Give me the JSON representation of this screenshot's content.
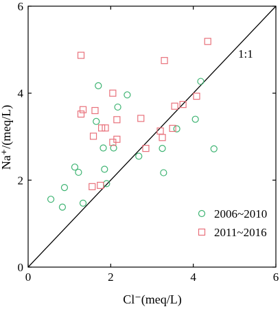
{
  "chart_data": {
    "type": "scatter",
    "xlabel": "Cl⁻(meq/L)",
    "ylabel": "Na⁺/(meq/L)",
    "xlim": [
      0,
      6
    ],
    "ylim": [
      0,
      6
    ],
    "xticks": [
      "0",
      "2",
      "4",
      "6"
    ],
    "yticks": [
      "0",
      "2",
      "4",
      "6"
    ],
    "grid": false,
    "legend_position": "bottom-right",
    "reference_line": {
      "label": "1:1",
      "from": [
        0,
        0
      ],
      "to": [
        6,
        6
      ]
    },
    "series": [
      {
        "name": "2006~2010",
        "marker": "circle",
        "color": "#3cb371",
        "points": [
          [
            0.55,
            1.56
          ],
          [
            0.83,
            1.38
          ],
          [
            0.88,
            1.83
          ],
          [
            1.13,
            2.3
          ],
          [
            1.22,
            2.18
          ],
          [
            1.33,
            1.47
          ],
          [
            1.65,
            3.35
          ],
          [
            1.7,
            4.17
          ],
          [
            1.82,
            2.74
          ],
          [
            1.85,
            2.25
          ],
          [
            1.9,
            1.92
          ],
          [
            2.07,
            2.74
          ],
          [
            2.17,
            3.68
          ],
          [
            2.4,
            3.96
          ],
          [
            2.68,
            2.55
          ],
          [
            3.25,
            2.73
          ],
          [
            3.28,
            2.17
          ],
          [
            3.6,
            3.18
          ],
          [
            4.05,
            3.4
          ],
          [
            4.18,
            4.27
          ],
          [
            4.5,
            2.72
          ]
        ]
      },
      {
        "name": "2011~2016",
        "marker": "square",
        "color": "#e8707a",
        "points": [
          [
            1.28,
            4.87
          ],
          [
            1.28,
            3.52
          ],
          [
            1.33,
            3.62
          ],
          [
            1.55,
            1.85
          ],
          [
            1.58,
            3.01
          ],
          [
            1.62,
            3.6
          ],
          [
            1.75,
            1.88
          ],
          [
            1.78,
            3.2
          ],
          [
            1.87,
            3.2
          ],
          [
            2.05,
            4.0
          ],
          [
            2.05,
            2.87
          ],
          [
            2.15,
            2.94
          ],
          [
            2.15,
            3.39
          ],
          [
            2.73,
            3.42
          ],
          [
            2.85,
            2.73
          ],
          [
            3.2,
            3.13
          ],
          [
            3.25,
            2.98
          ],
          [
            3.3,
            4.75
          ],
          [
            3.5,
            3.19
          ],
          [
            3.55,
            3.7
          ],
          [
            3.75,
            3.74
          ],
          [
            4.08,
            3.93
          ],
          [
            4.35,
            5.19
          ]
        ]
      }
    ]
  }
}
